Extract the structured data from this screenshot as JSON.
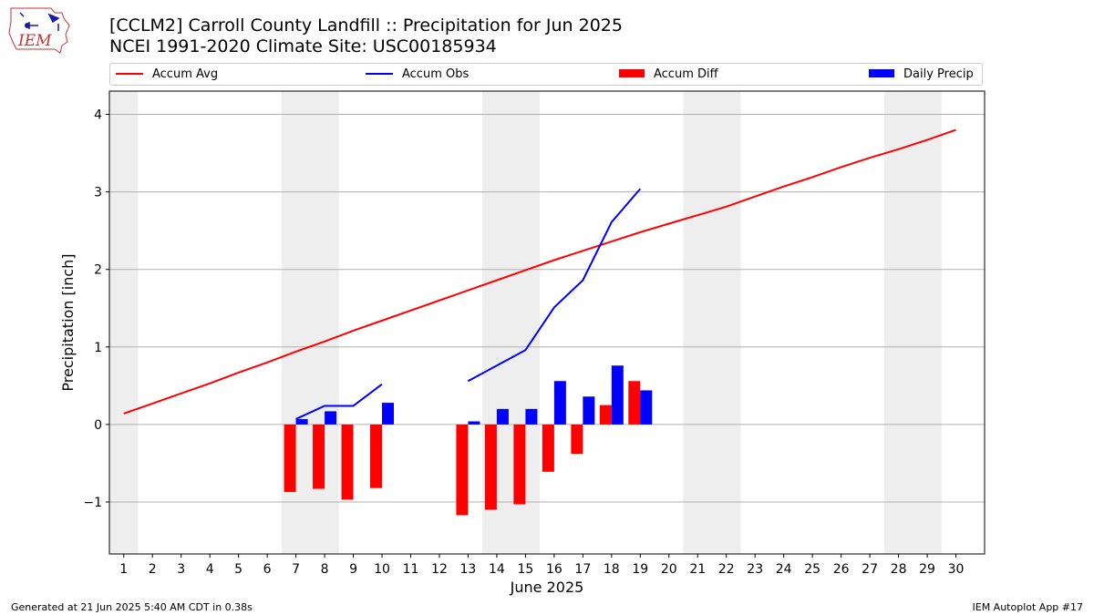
{
  "header": {
    "logo_text": "IEM",
    "title_line1": "[CCLM2] Carroll County Landfill :: Precipitation for Jun 2025",
    "title_line2": "NCEI 1991-2020 Climate Site: USC00185934"
  },
  "legend": {
    "accum_avg": "Accum Avg",
    "accum_obs": "Accum Obs",
    "accum_diff": "Accum Diff",
    "daily_precip": "Daily Precip"
  },
  "colors": {
    "avg": "#ff0000",
    "obs": "#0000ff",
    "diff": "#ff0000",
    "daily": "#0000ff",
    "weekend_shade": "#eeeeee",
    "grid": "#b0b0b0"
  },
  "footer": {
    "generated": "Generated at 21 Jun 2025 5:40 AM CDT in 0.38s",
    "app": "IEM Autoplot App #17"
  },
  "chart_data": {
    "type": "bar",
    "xlabel": "June 2025",
    "ylabel": "Precipitation [inch]",
    "xlim": [
      0.5,
      31.0
    ],
    "ylim": [
      -1.67,
      4.3
    ],
    "x_ticks": [
      1,
      2,
      3,
      4,
      5,
      6,
      7,
      8,
      9,
      10,
      11,
      12,
      13,
      14,
      15,
      16,
      17,
      18,
      19,
      20,
      21,
      22,
      23,
      24,
      25,
      26,
      27,
      28,
      29,
      30
    ],
    "y_ticks": [
      -1,
      0,
      1,
      2,
      3,
      4
    ],
    "y_tick_labels": [
      "−1",
      "0",
      "1",
      "2",
      "3",
      "4"
    ],
    "grid": "horizontal",
    "legend_position": "top",
    "weekend_shading": [
      [
        0.5,
        1.5
      ],
      [
        6.5,
        8.5
      ],
      [
        13.5,
        15.5
      ],
      [
        20.5,
        22.5
      ],
      [
        27.5,
        29.5
      ]
    ],
    "accum_avg": {
      "name": "Accum Avg",
      "x": [
        1,
        2,
        3,
        4,
        5,
        6,
        7,
        8,
        9,
        10,
        11,
        12,
        13,
        14,
        15,
        16,
        17,
        18,
        19,
        20,
        21,
        22,
        23,
        24,
        25,
        26,
        27,
        28,
        29,
        30
      ],
      "values": [
        0.14,
        0.27,
        0.4,
        0.53,
        0.67,
        0.8,
        0.94,
        1.07,
        1.21,
        1.34,
        1.47,
        1.6,
        1.73,
        1.86,
        1.99,
        2.12,
        2.24,
        2.36,
        2.48,
        2.59,
        2.7,
        2.81,
        2.94,
        3.07,
        3.19,
        3.32,
        3.44,
        3.55,
        3.67,
        3.8
      ]
    },
    "accum_obs": {
      "name": "Accum Obs",
      "segments": [
        {
          "x": [
            7,
            8,
            9,
            10
          ],
          "values": [
            0.07,
            0.24,
            0.24,
            0.52
          ]
        },
        {
          "x": [
            13,
            14,
            15,
            16,
            17,
            18,
            19
          ],
          "values": [
            0.56,
            0.76,
            0.96,
            1.51,
            1.86,
            2.61,
            3.04
          ]
        }
      ]
    },
    "accum_diff": {
      "name": "Accum Diff",
      "x": [
        7,
        8,
        9,
        10,
        13,
        14,
        15,
        16,
        17,
        18,
        19
      ],
      "values": [
        -0.87,
        -0.83,
        -0.97,
        -0.82,
        -1.17,
        -1.1,
        -1.03,
        -0.61,
        -0.38,
        0.25,
        0.56
      ]
    },
    "daily_precip": {
      "name": "Daily Precip",
      "x": [
        7,
        8,
        10,
        13,
        14,
        15,
        16,
        17,
        18,
        19
      ],
      "values": [
        0.07,
        0.17,
        0.28,
        0.04,
        0.2,
        0.2,
        0.56,
        0.36,
        0.76,
        0.44
      ]
    }
  }
}
